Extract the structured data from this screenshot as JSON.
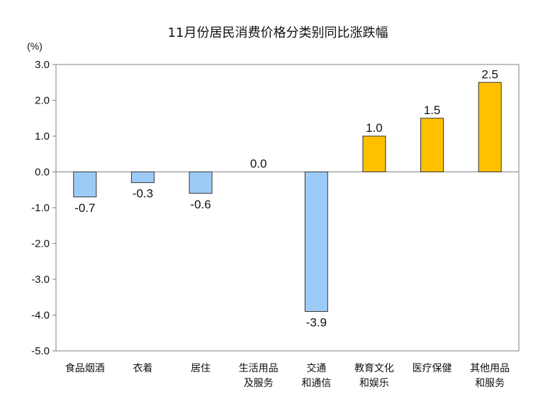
{
  "chart_data": {
    "type": "bar",
    "title": "11月份居民消费价格分类别同比涨跌幅",
    "unit": "(%)",
    "categories": [
      [
        "食品烟酒"
      ],
      [
        "衣着"
      ],
      [
        "居住"
      ],
      [
        "生活用品",
        "及服务"
      ],
      [
        "交通",
        "和通信"
      ],
      [
        "教育文化",
        "和娱乐"
      ],
      [
        "医疗保健"
      ],
      [
        "其他用品",
        "和服务"
      ]
    ],
    "values": [
      -0.7,
      -0.3,
      -0.6,
      0.0,
      -3.9,
      1.0,
      1.5,
      2.5
    ],
    "value_labels": [
      "-0.7",
      "-0.3",
      "-0.6",
      "0.0",
      "-3.9",
      "1.0",
      "1.5",
      "2.5"
    ],
    "ylim": [
      -5.0,
      3.0
    ],
    "yticks": [
      3.0,
      2.0,
      1.0,
      0.0,
      -1.0,
      -2.0,
      -3.0,
      -4.0,
      -5.0
    ],
    "ytick_labels": [
      "3.0",
      "2.0",
      "1.0",
      "0.0",
      "-1.0",
      "-2.0",
      "-3.0",
      "-4.0",
      "-5.0"
    ],
    "grid": false,
    "legend": "none",
    "colors": {
      "negative": "#9DCBF7",
      "positive": "#FFC000",
      "outline": "#333333",
      "axis": "#808080",
      "text": "#111111"
    }
  }
}
